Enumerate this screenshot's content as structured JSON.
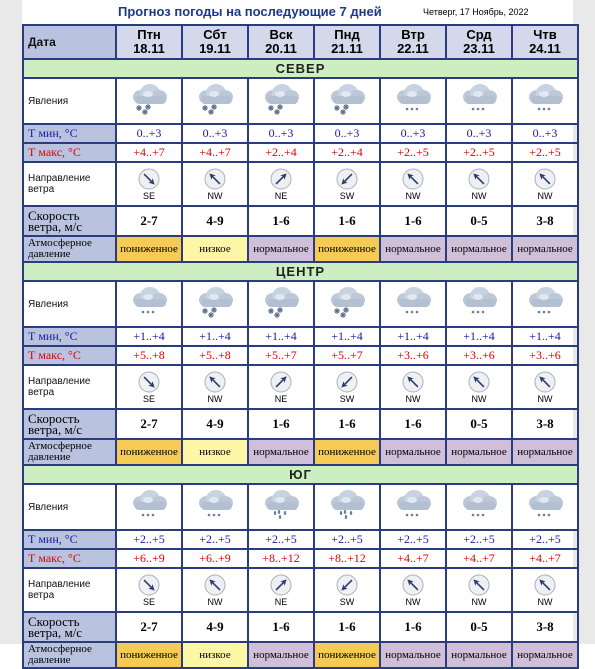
{
  "title": "Прогноз погоды на последующие 7 дней",
  "date": "Четверг, 17 Ноябрь, 2022",
  "labels": {
    "date": "Дата",
    "phenomena": "Явления",
    "tmin": "Т мин, °С",
    "tmax": "Т макс, °С",
    "wind_dir": "Направление ветра",
    "wind_speed": "Скорость ветра, м/с",
    "pressure": "Атмосферное давление"
  },
  "days": [
    {
      "name": "Птн",
      "date": "18.11"
    },
    {
      "name": "Сбт",
      "date": "19.11"
    },
    {
      "name": "Вск",
      "date": "20.11"
    },
    {
      "name": "Пнд",
      "date": "21.11"
    },
    {
      "name": "Втр",
      "date": "22.11"
    },
    {
      "name": "Срд",
      "date": "23.11"
    },
    {
      "name": "Чтв",
      "date": "24.11"
    }
  ],
  "regions": [
    {
      "name": "СЕВЕР",
      "icons": [
        "cloud-snowflake-icon",
        "cloud-snowflake-icon",
        "cloud-snowflake-icon",
        "cloud-snowflake-icon",
        "cloud-snow-dots-icon",
        "cloud-snow-dots-icon",
        "cloud-snow-dots-icon"
      ],
      "tmin": [
        "0..+3",
        "0..+3",
        "0..+3",
        "0..+3",
        "0..+3",
        "0..+3",
        "0..+3"
      ],
      "tmax": [
        "+4..+7",
        "+4..+7",
        "+2..+4",
        "+2..+4",
        "+2..+5",
        "+2..+5",
        "+2..+5"
      ],
      "wind_dir": [
        "SE",
        "NW",
        "NE",
        "SW",
        "NW",
        "NW",
        "NW"
      ],
      "wind_speed": [
        "2-7",
        "4-9",
        "1-6",
        "1-6",
        "1-6",
        "0-5",
        "3-8"
      ],
      "pressure": [
        "пониженное",
        "низкое",
        "нормальное",
        "пониженное",
        "нормальное",
        "нормальное",
        "нормальное"
      ],
      "pressure_class": [
        "p-low",
        "p-lowish",
        "p-norm",
        "p-low",
        "p-norm",
        "p-norm",
        "p-norm"
      ]
    },
    {
      "name": "ЦЕНТР",
      "icons": [
        "cloud-snow-dots-icon",
        "cloud-snowflake-icon",
        "cloud-snowflake-icon",
        "cloud-snowflake-icon",
        "cloud-snow-dots-icon",
        "cloud-snow-dots-icon",
        "cloud-snow-dots-icon"
      ],
      "tmin": [
        "+1..+4",
        "+1..+4",
        "+1..+4",
        "+1..+4",
        "+1..+4",
        "+1..+4",
        "+1..+4"
      ],
      "tmax": [
        "+5..+8",
        "+5..+8",
        "+5..+7",
        "+5..+7",
        "+3..+6",
        "+3..+6",
        "+3..+6"
      ],
      "wind_dir": [
        "SE",
        "NW",
        "NE",
        "SW",
        "NW",
        "NW",
        "NW"
      ],
      "wind_speed": [
        "2-7",
        "4-9",
        "1-6",
        "1-6",
        "1-6",
        "0-5",
        "3-8"
      ],
      "pressure": [
        "пониженное",
        "низкое",
        "нормальное",
        "пониженное",
        "нормальное",
        "нормальное",
        "нормальное"
      ],
      "pressure_class": [
        "p-low",
        "p-lowish",
        "p-norm",
        "p-low",
        "p-norm",
        "p-norm",
        "p-norm"
      ]
    },
    {
      "name": "ЮГ",
      "icons": [
        "cloud-snow-dots-icon",
        "cloud-snow-dots-icon",
        "cloud-rain-icon",
        "cloud-rain-icon",
        "cloud-snow-dots-icon",
        "cloud-snow-dots-icon",
        "cloud-snow-dots-icon"
      ],
      "tmin": [
        "+2..+5",
        "+2..+5",
        "+2..+5",
        "+2..+5",
        "+2..+5",
        "+2..+5",
        "+2..+5"
      ],
      "tmax": [
        "+6..+9",
        "+6..+9",
        "+8..+12",
        "+8..+12",
        "+4..+7",
        "+4..+7",
        "+4..+7"
      ],
      "wind_dir": [
        "SE",
        "NW",
        "NE",
        "SW",
        "NW",
        "NW",
        "NW"
      ],
      "wind_speed": [
        "2-7",
        "4-9",
        "1-6",
        "1-6",
        "1-6",
        "0-5",
        "3-8"
      ],
      "pressure": [
        "пониженное",
        "низкое",
        "нормальное",
        "пониженное",
        "нормальное",
        "нормальное",
        "нормальное"
      ],
      "pressure_class": [
        "p-low",
        "p-lowish",
        "p-norm",
        "p-low",
        "p-norm",
        "p-norm",
        "p-norm"
      ]
    }
  ],
  "colors": {
    "header_bg": "#d3d9ea",
    "label_bg": "#b9c3df",
    "section_bg": "#cdeec0",
    "border": "#2a3c7e",
    "tmin_text": "#1a1a9a",
    "tmax_text": "#e00000",
    "pressure_low": "#f5ca55",
    "pressure_lowish": "#fdf6a6",
    "pressure_normal": "#cfbfd8"
  }
}
